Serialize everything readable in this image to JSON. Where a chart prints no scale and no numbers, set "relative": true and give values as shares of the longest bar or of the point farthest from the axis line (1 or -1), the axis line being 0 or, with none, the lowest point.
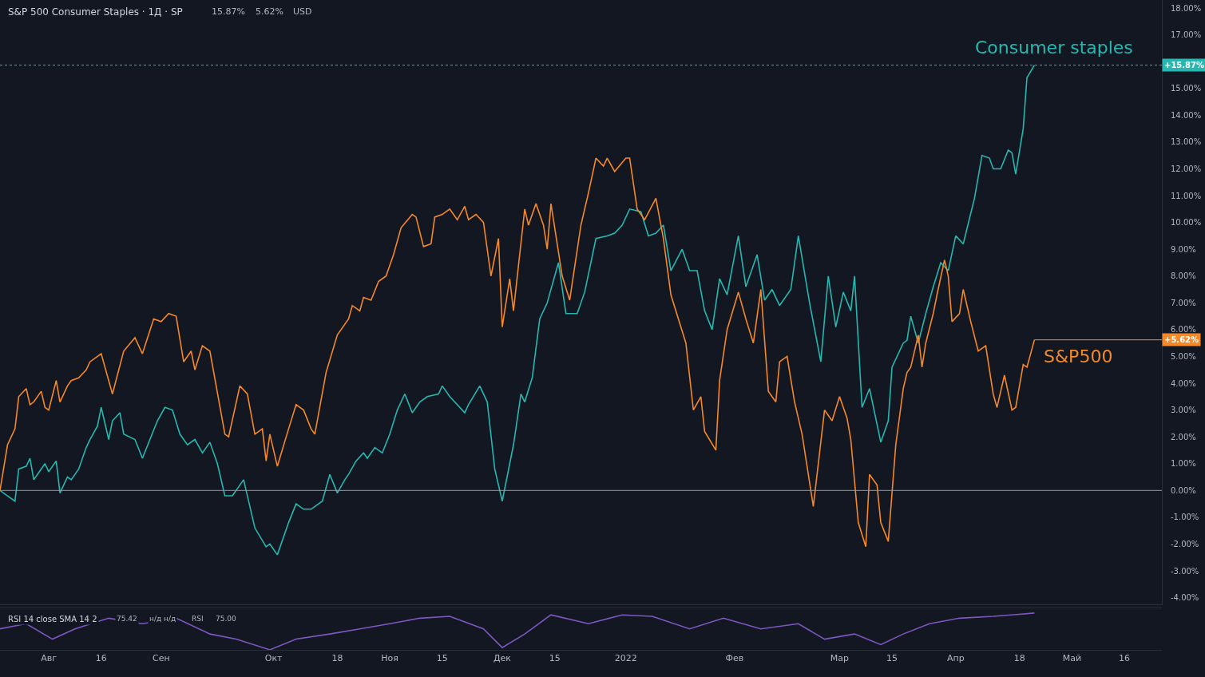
{
  "chart_data": [
    {
      "type": "line",
      "title": "S&P 500 Consumer Staples · 1Д · SP",
      "annotations": [
        "15.87%",
        "5.62%",
        "USD",
        {
          "text": "+5.62%",
          "x": "2022-04-22",
          "y": 5.62
        }
      ],
      "xlim": [
        "2021-07-20",
        "2022-05-26"
      ],
      "ylim": [
        -4.24,
        18.3
      ],
      "yticks": [
        {
          "value": -4,
          "label": "-4.00%"
        },
        {
          "value": -3,
          "label": "-3.00%"
        },
        {
          "value": -2,
          "label": "-2.00%"
        },
        {
          "value": -1,
          "label": "-1.00%"
        },
        {
          "value": 0,
          "label": "0.00%"
        },
        {
          "value": 1,
          "label": "1.00%"
        },
        {
          "value": 2,
          "label": "2.00%"
        },
        {
          "value": 3,
          "label": "3.00%"
        },
        {
          "value": 4,
          "label": "4.00%"
        },
        {
          "value": 5,
          "label": "5.00%"
        },
        {
          "value": 6,
          "label": "6.00%"
        },
        {
          "value": 7,
          "label": "7.00%"
        },
        {
          "value": 8,
          "label": "8.00%"
        },
        {
          "value": 9,
          "label": "9.00%"
        },
        {
          "value": 10,
          "label": "10.00%"
        },
        {
          "value": 11,
          "label": "11.00%"
        },
        {
          "value": 12,
          "label": "12.00%"
        },
        {
          "value": 13,
          "label": "13.00%"
        },
        {
          "value": 14,
          "label": "14.00%"
        },
        {
          "value": 15,
          "label": "15.00%"
        },
        {
          "value": 17,
          "label": "17.00%"
        },
        {
          "value": 18,
          "label": "18.00%"
        }
      ],
      "tick_labels": "y",
      "grid": false,
      "legend": false,
      "ref_lines": [
        {
          "axis": "y",
          "value": 0,
          "color": "#9598a1",
          "line_style": "solid"
        },
        {
          "axis": "y",
          "value": 15.87,
          "color": "#26b8b0",
          "line_style": "dotted",
          "label": "+15.87%"
        }
      ],
      "series": [
        {
          "name": "Consumer staples",
          "color": "#26b8b0",
          "x": [
            "2021-07-20",
            "2021-07-22",
            "2021-07-24",
            "2021-07-25",
            "2021-07-27",
            "2021-07-28",
            "2021-07-29",
            "2021-07-31",
            "2021-08-01",
            "2021-08-02",
            "2021-08-04",
            "2021-08-05",
            "2021-08-07",
            "2021-08-08",
            "2021-08-10",
            "2021-08-12",
            "2021-08-13",
            "2021-08-15",
            "2021-08-16",
            "2021-08-18",
            "2021-08-19",
            "2021-08-21",
            "2021-08-22",
            "2021-08-25",
            "2021-08-27",
            "2021-08-29",
            "2021-08-31",
            "2021-09-02",
            "2021-09-04",
            "2021-09-06",
            "2021-09-08",
            "2021-09-10",
            "2021-09-12",
            "2021-09-14",
            "2021-09-16",
            "2021-09-18",
            "2021-09-20",
            "2021-09-23",
            "2021-09-26",
            "2021-09-29",
            "2021-09-30",
            "2021-10-02",
            "2021-10-05",
            "2021-10-07",
            "2021-10-09",
            "2021-10-11",
            "2021-10-14",
            "2021-10-16",
            "2021-10-18",
            "2021-10-20",
            "2021-10-21",
            "2021-10-23",
            "2021-10-25",
            "2021-10-26",
            "2021-10-28",
            "2021-10-30",
            "2021-11-01",
            "2021-11-03",
            "2021-11-05",
            "2021-11-07",
            "2021-11-09",
            "2021-11-11",
            "2021-11-14",
            "2021-11-15",
            "2021-11-17",
            "2021-11-21",
            "2021-11-22",
            "2021-11-25",
            "2021-11-27",
            "2021-11-29",
            "2021-12-01",
            "2021-12-04",
            "2021-12-06",
            "2021-12-07",
            "2021-12-09",
            "2021-12-11",
            "2021-12-13",
            "2021-12-16",
            "2021-12-18",
            "2021-12-21",
            "2021-12-23",
            "2021-12-26",
            "2021-12-29",
            "2021-12-31",
            "2022-01-02",
            "2022-01-04",
            "2022-01-07",
            "2022-01-09",
            "2022-01-11",
            "2022-01-13",
            "2022-01-15",
            "2022-01-18",
            "2022-01-20",
            "2022-01-22",
            "2022-01-24",
            "2022-01-26",
            "2022-01-28",
            "2022-01-30",
            "2022-02-02",
            "2022-02-04",
            "2022-02-07",
            "2022-02-09",
            "2022-02-11",
            "2022-02-13",
            "2022-02-16",
            "2022-02-18",
            "2022-02-21",
            "2022-02-24",
            "2022-02-26",
            "2022-02-28",
            "2022-03-02",
            "2022-03-04",
            "2022-03-05",
            "2022-03-07",
            "2022-03-09",
            "2022-03-12",
            "2022-03-14",
            "2022-03-15",
            "2022-03-18",
            "2022-03-19",
            "2022-03-20",
            "2022-03-22",
            "2022-03-24",
            "2022-03-26",
            "2022-03-28",
            "2022-03-30",
            "2022-04-01",
            "2022-04-03",
            "2022-04-06",
            "2022-04-08",
            "2022-04-10",
            "2022-04-11",
            "2022-04-13",
            "2022-04-15",
            "2022-04-16",
            "2022-04-17",
            "2022-04-19",
            "2022-04-20",
            "2022-04-22"
          ],
          "values": [
            0.0,
            -0.2,
            -0.4,
            0.8,
            0.9,
            1.2,
            0.4,
            0.8,
            1.0,
            0.7,
            1.1,
            -0.1,
            0.5,
            0.4,
            0.8,
            1.6,
            1.9,
            2.4,
            3.1,
            1.9,
            2.6,
            2.9,
            2.1,
            1.9,
            1.2,
            1.9,
            2.6,
            3.1,
            3.0,
            2.1,
            1.7,
            1.9,
            1.4,
            1.8,
            1.0,
            -0.2,
            -0.2,
            0.4,
            -1.4,
            -2.1,
            -2.0,
            -2.4,
            -1.2,
            -0.5,
            -0.7,
            -0.7,
            -0.4,
            0.6,
            -0.1,
            0.4,
            0.6,
            1.1,
            1.4,
            1.2,
            1.6,
            1.4,
            2.1,
            3.0,
            3.6,
            2.9,
            3.3,
            3.5,
            3.6,
            3.9,
            3.5,
            2.9,
            3.2,
            3.9,
            3.3,
            0.8,
            -0.4,
            1.7,
            3.6,
            3.3,
            4.2,
            6.4,
            7.0,
            8.5,
            6.6,
            6.6,
            7.4,
            9.4,
            9.5,
            9.6,
            9.9,
            10.5,
            10.4,
            9.5,
            9.6,
            9.9,
            8.2,
            9.0,
            8.2,
            8.2,
            6.7,
            6.0,
            7.9,
            7.3,
            9.5,
            7.6,
            8.8,
            7.1,
            7.5,
            6.9,
            7.5,
            9.5,
            7.0,
            4.8,
            8.0,
            6.1,
            7.4,
            6.7,
            8.0,
            3.1,
            3.8,
            1.8,
            2.6,
            4.6,
            5.5,
            5.6,
            6.5,
            5.5,
            6.6,
            7.6,
            8.5,
            8.2,
            9.5,
            9.2,
            10.9,
            12.5,
            12.4,
            12.0,
            12.0,
            12.7,
            12.6,
            11.8,
            13.5,
            15.4,
            15.87
          ]
        },
        {
          "name": "S&P500",
          "color": "#f5892a",
          "x": [
            "2021-07-20",
            "2021-07-22",
            "2021-07-24",
            "2021-07-25",
            "2021-07-27",
            "2021-07-28",
            "2021-07-29",
            "2021-07-31",
            "2021-08-01",
            "2021-08-02",
            "2021-08-04",
            "2021-08-05",
            "2021-08-07",
            "2021-08-08",
            "2021-08-10",
            "2021-08-12",
            "2021-08-13",
            "2021-08-16",
            "2021-08-19",
            "2021-08-22",
            "2021-08-25",
            "2021-08-27",
            "2021-08-30",
            "2021-09-01",
            "2021-09-03",
            "2021-09-05",
            "2021-09-07",
            "2021-09-09",
            "2021-09-10",
            "2021-09-12",
            "2021-09-14",
            "2021-09-18",
            "2021-09-19",
            "2021-09-22",
            "2021-09-24",
            "2021-09-26",
            "2021-09-28",
            "2021-09-29",
            "2021-09-30",
            "2021-10-02",
            "2021-10-05",
            "2021-10-07",
            "2021-10-09",
            "2021-10-11",
            "2021-10-12",
            "2021-10-15",
            "2021-10-18",
            "2021-10-21",
            "2021-10-22",
            "2021-10-24",
            "2021-10-25",
            "2021-10-27",
            "2021-10-29",
            "2021-10-31",
            "2021-11-02",
            "2021-11-04",
            "2021-11-07",
            "2021-11-08",
            "2021-11-10",
            "2021-11-12",
            "2021-11-13",
            "2021-11-15",
            "2021-11-17",
            "2021-11-19",
            "2021-11-21",
            "2021-11-22",
            "2021-11-24",
            "2021-11-26",
            "2021-11-28",
            "2021-11-30",
            "2021-12-01",
            "2021-12-03",
            "2021-12-04",
            "2021-12-07",
            "2021-12-08",
            "2021-12-10",
            "2021-12-12",
            "2021-12-13",
            "2021-12-14",
            "2021-12-17",
            "2021-12-19",
            "2021-12-22",
            "2021-12-24",
            "2021-12-26",
            "2021-12-28",
            "2021-12-29",
            "2021-12-31",
            "2022-01-03",
            "2022-01-04",
            "2022-01-06",
            "2022-01-08",
            "2022-01-11",
            "2022-01-13",
            "2022-01-15",
            "2022-01-19",
            "2022-01-21",
            "2022-01-23",
            "2022-01-24",
            "2022-01-27",
            "2022-01-28",
            "2022-01-30",
            "2022-02-02",
            "2022-02-04",
            "2022-02-06",
            "2022-02-08",
            "2022-02-10",
            "2022-02-12",
            "2022-02-13",
            "2022-02-15",
            "2022-02-17",
            "2022-02-19",
            "2022-02-22",
            "2022-02-25",
            "2022-02-27",
            "2022-03-01",
            "2022-03-03",
            "2022-03-04",
            "2022-03-06",
            "2022-03-08",
            "2022-03-09",
            "2022-03-11",
            "2022-03-12",
            "2022-03-14",
            "2022-03-16",
            "2022-03-18",
            "2022-03-19",
            "2022-03-20",
            "2022-03-22",
            "2022-03-23",
            "2022-03-24",
            "2022-03-26",
            "2022-03-27",
            "2022-03-29",
            "2022-03-30",
            "2022-03-31",
            "2022-04-02",
            "2022-04-03",
            "2022-04-05",
            "2022-04-07",
            "2022-04-09",
            "2022-04-11",
            "2022-04-12",
            "2022-04-14",
            "2022-04-16",
            "2022-04-17",
            "2022-04-19",
            "2022-04-20",
            "2022-04-22"
          ],
          "values": [
            0.0,
            1.7,
            2.3,
            3.5,
            3.8,
            3.2,
            3.3,
            3.7,
            3.1,
            3.0,
            4.1,
            3.3,
            3.9,
            4.1,
            4.2,
            4.5,
            4.8,
            5.1,
            3.6,
            5.2,
            5.7,
            5.1,
            6.4,
            6.3,
            6.6,
            6.5,
            4.8,
            5.2,
            4.5,
            5.4,
            5.2,
            2.1,
            2.0,
            3.9,
            3.6,
            2.1,
            2.3,
            1.1,
            2.1,
            0.9,
            2.3,
            3.2,
            3.0,
            2.3,
            2.1,
            4.4,
            5.8,
            6.4,
            6.9,
            6.7,
            7.2,
            7.1,
            7.8,
            8.0,
            8.8,
            9.8,
            10.3,
            10.2,
            9.1,
            9.2,
            10.2,
            10.3,
            10.5,
            10.1,
            10.6,
            10.1,
            10.3,
            10.0,
            8.0,
            9.4,
            6.1,
            7.9,
            6.7,
            10.5,
            9.9,
            10.7,
            9.9,
            9.0,
            10.7,
            8.0,
            7.1,
            9.9,
            11.1,
            12.4,
            12.1,
            12.4,
            11.9,
            12.4,
            12.4,
            10.5,
            10.1,
            10.9,
            9.4,
            7.3,
            5.5,
            3.0,
            3.5,
            2.2,
            1.5,
            4.1,
            6.0,
            7.4,
            6.4,
            5.5,
            7.5,
            3.7,
            3.3,
            4.8,
            5.0,
            3.3,
            2.1,
            -0.6,
            3.0,
            2.6,
            3.5,
            2.7,
            1.9,
            -1.2,
            -2.1,
            0.6,
            0.2,
            -1.2,
            -1.9,
            1.7,
            3.8,
            4.4,
            4.6,
            5.8,
            4.6,
            5.5,
            6.6,
            7.3,
            8.6,
            8.0,
            6.3,
            6.6,
            7.5,
            6.3,
            5.2,
            5.4,
            3.6,
            3.1,
            4.3,
            3.0,
            3.1,
            4.7,
            4.6,
            5.62
          ]
        }
      ]
    },
    {
      "type": "line",
      "title": "RSI 14 close SMA 14 2",
      "annotations": [
        "75.42",
        "н/д н/д",
        "RSI",
        "75.00"
      ],
      "relative": true,
      "xlim": [
        "2021-07-20",
        "2022-05-26"
      ],
      "xticks": [
        {
          "value": "2021-08-02",
          "label": "Авг"
        },
        {
          "value": "2021-08-16",
          "label": "16"
        },
        {
          "value": "2021-09-01",
          "label": "Сен"
        },
        {
          "value": "2021-10-01",
          "label": "Окт"
        },
        {
          "value": "2021-10-18",
          "label": "18"
        },
        {
          "value": "2021-11-01",
          "label": "Ноя"
        },
        {
          "value": "2021-11-15",
          "label": "15"
        },
        {
          "value": "2021-12-01",
          "label": "Дек"
        },
        {
          "value": "2021-12-15",
          "label": "15"
        },
        {
          "value": "2022-01-03",
          "label": "2022"
        },
        {
          "value": "2022-02-01",
          "label": "Фев"
        },
        {
          "value": "2022-03-01",
          "label": "Мар"
        },
        {
          "value": "2022-03-15",
          "label": "15"
        },
        {
          "value": "2022-04-01",
          "label": "Апр"
        },
        {
          "value": "2022-04-18",
          "label": "18"
        },
        {
          "value": "2022-05-02",
          "label": "Май"
        },
        {
          "value": "2022-05-16",
          "label": "16"
        }
      ],
      "tick_labels": "x",
      "grid": false,
      "legend": false,
      "series": [
        {
          "color": "#7e57c2",
          "x": [
            "2021-07-20",
            "2021-07-27",
            "2021-08-03",
            "2021-08-09",
            "2021-08-18",
            "2021-08-27",
            "2021-09-05",
            "2021-09-14",
            "2021-09-21",
            "2021-09-30",
            "2021-10-07",
            "2021-10-16",
            "2021-10-24",
            "2021-11-01",
            "2021-11-09",
            "2021-11-17",
            "2021-11-26",
            "2021-12-01",
            "2021-12-07",
            "2021-12-14",
            "2021-12-24",
            "2022-01-02",
            "2022-01-10",
            "2022-01-20",
            "2022-01-29",
            "2022-02-08",
            "2022-02-18",
            "2022-02-25",
            "2022-03-05",
            "2022-03-12",
            "2022-03-18",
            "2022-03-25",
            "2022-04-02",
            "2022-04-11",
            "2022-04-22"
          ],
          "values": [
            0.57,
            0.71,
            0.29,
            0.57,
            0.86,
            0.71,
            0.86,
            0.43,
            0.29,
            0.0,
            0.29,
            0.43,
            0.57,
            0.71,
            0.86,
            0.91,
            0.57,
            0.06,
            0.43,
            0.95,
            0.71,
            0.95,
            0.91,
            0.57,
            0.86,
            0.57,
            0.71,
            0.29,
            0.43,
            0.14,
            0.43,
            0.71,
            0.86,
            0.91,
            1.0
          ]
        }
      ]
    }
  ]
}
